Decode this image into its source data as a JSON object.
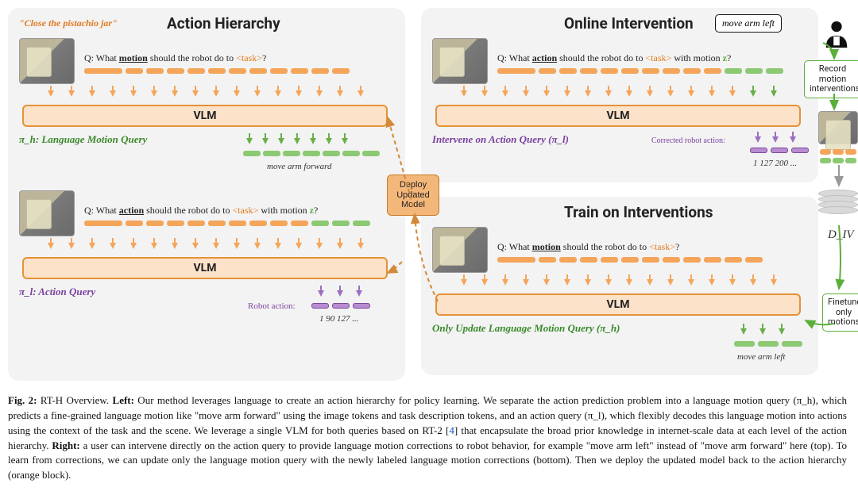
{
  "colors": {
    "panel_bg": "#f3f3f3",
    "orange": "#e69138",
    "orange_fill": "#fbe2c9",
    "orange_token": "#f4a55a",
    "green": "#5aae3a",
    "green_token": "#8cc973",
    "purple": "#7a3fa0",
    "purple_token": "#b98bd0",
    "text": "#111111",
    "deploy_fill": "#f4b77a",
    "deploy_border": "#c77a2a",
    "grey": "#d9d9d9"
  },
  "fonts": {
    "title_pt": 19,
    "query_pt": 12,
    "label_pt": 13,
    "small_pt": 11,
    "caption_pt": 13
  },
  "left_panel": {
    "title": "Action Hierarchy",
    "instruction": "\"Close the pistachio jar\"",
    "motion_query": {
      "q_prefix": "Q: What ",
      "q_word": "motion",
      "q_mid": " should the robot do to ",
      "q_task": "<task>",
      "q_suffix": "?",
      "policy_label": "π_h: Language Motion Query",
      "output_label": "move arm forward"
    },
    "action_query": {
      "q_prefix": "Q: What ",
      "q_word": "action",
      "q_mid": " should the robot do to ",
      "q_task": "<task>",
      "q_with": " with motion ",
      "q_z": "z",
      "q_suffix": "?",
      "policy_label": "π_l: Action Query",
      "output_label": "Robot action:",
      "output_values": "1 90 127 ..."
    }
  },
  "top_right_panel": {
    "title": "Online Intervention",
    "speech": "move arm left",
    "query": {
      "q_prefix": "Q: What ",
      "q_word": "action",
      "q_mid": " should the robot do to ",
      "q_task": "<task>",
      "q_with": " with motion ",
      "q_z": "z",
      "q_suffix": "?"
    },
    "policy_label": "Intervene on Action Query (π_l)",
    "output_label": "Corrected robot action:",
    "output_values": "1 127 200 ...",
    "note": "Record motion interventions"
  },
  "bottom_right_panel": {
    "title": "Train on Interventions",
    "query": {
      "q_prefix": "Q: What ",
      "q_word": "motion",
      "q_mid": " should the robot do to ",
      "q_task": "<task>",
      "q_suffix": "?"
    },
    "policy_label": "Only Update Language Motion Query (π_h)",
    "output_label": "move arm left",
    "note": "Finetune only motions"
  },
  "deploy_box": "Deploy Updated Model",
  "dataset_label": "D_IV",
  "caption": {
    "fig": "Fig. 2:",
    "body": " RT-H Overview. <b>Left:</b> Our method leverages language to create an action hierarchy for policy learning. We separate the action prediction problem into a language motion query (π_h), which predicts a fine-grained language motion like \"move arm forward\" using the image tokens and task description tokens, and an action query (π_l), which flexibly decodes this language motion into actions using the context of the task and the scene. We leverage a single VLM for both queries based on RT-2 [<span class='ref'>4</span>] that encapsulate the broad prior knowledge in internet-scale data at each level of the action hierarchy. <b>Right:</b> a user can intervene directly on the action query to provide language motion corrections to robot behavior, for example \"move arm left\" instead of \"move arm forward\" here (top). To learn from corrections, we can update only the language motion query with the newly labeled language motion corrections (bottom). Then we deploy the updated model back to the action hierarchy (orange block).",
    "vlm_label": "VLM"
  }
}
